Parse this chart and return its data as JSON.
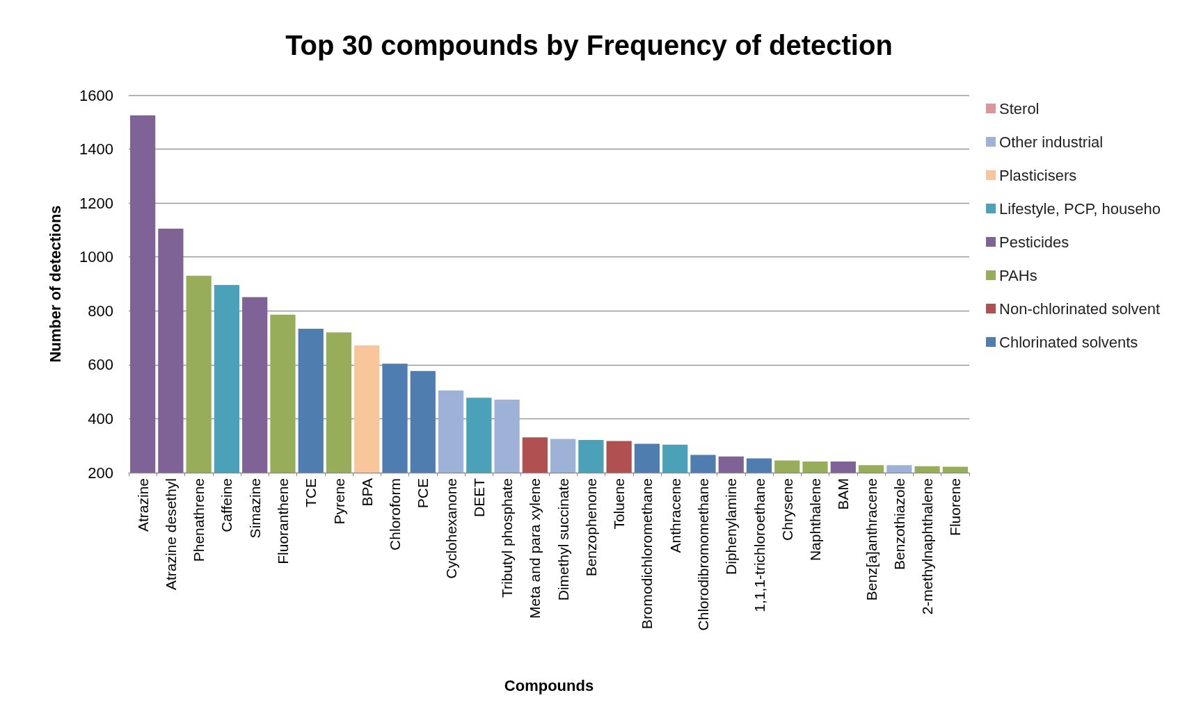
{
  "chart_data": {
    "type": "bar",
    "title": "Top 30 compounds by Frequency of detection",
    "xlabel": "Compounds",
    "ylabel": "Number of detections",
    "categories": [
      "Atrazine",
      "Atrazine desethyl",
      "Phenathrene",
      "Caffeine",
      "Simazine",
      "Fluoranthene",
      "TCE",
      "Pyrene",
      "BPA",
      "Chloroform",
      "PCE",
      "Cyclohexanone",
      "DEET",
      "Tributyl phosphate",
      "Meta and para xylene",
      "Dimethyl succinate",
      "Benzophenone",
      "Toluene",
      "Bromodichloromethane",
      "Anthracene",
      "Chlorodibromomethane",
      "Diphenylamine",
      "1,1,1-trichloroethane",
      "Chrysene",
      "Naphthalene",
      "BAM",
      "Benz[a]anthracene",
      "Benzothiazole",
      "2-methylnaphthalene",
      "Fluorene"
    ],
    "series": [
      {
        "name": "Sterol",
        "color": "#d99797",
        "values": [
          null,
          null,
          null,
          null,
          null,
          null,
          null,
          null,
          null,
          null,
          null,
          null,
          null,
          null,
          null,
          null,
          null,
          null,
          null,
          null,
          null,
          null,
          null,
          null,
          null,
          null,
          null,
          null,
          null,
          null
        ]
      },
      {
        "name": "Other industrial",
        "color": "#9db2d6",
        "values": [
          null,
          null,
          null,
          null,
          null,
          null,
          null,
          null,
          null,
          null,
          null,
          505,
          null,
          471,
          null,
          325,
          null,
          null,
          null,
          null,
          null,
          null,
          null,
          null,
          null,
          null,
          null,
          228,
          null,
          null
        ]
      },
      {
        "name": "Plasticisers",
        "color": "#f9c59b",
        "values": [
          null,
          null,
          null,
          null,
          null,
          null,
          null,
          null,
          672,
          null,
          null,
          null,
          null,
          null,
          null,
          null,
          null,
          null,
          null,
          null,
          null,
          null,
          null,
          null,
          null,
          null,
          null,
          null,
          null,
          null
        ]
      },
      {
        "name": "Lifestyle, PCP, househo",
        "color": "#4ba1b8",
        "values": [
          null,
          null,
          null,
          896,
          null,
          null,
          null,
          null,
          null,
          null,
          null,
          null,
          478,
          null,
          null,
          null,
          321,
          null,
          null,
          304,
          null,
          null,
          null,
          null,
          null,
          null,
          null,
          null,
          null,
          null
        ]
      },
      {
        "name": "Pesticides",
        "color": "#7f6397",
        "values": [
          1525,
          1105,
          null,
          null,
          851,
          null,
          null,
          null,
          null,
          null,
          null,
          null,
          null,
          null,
          null,
          null,
          null,
          null,
          null,
          null,
          null,
          260,
          null,
          null,
          null,
          241,
          null,
          null,
          null,
          null
        ]
      },
      {
        "name": "PAHs",
        "color": "#97ad5a",
        "values": [
          null,
          null,
          930,
          null,
          null,
          786,
          null,
          720,
          null,
          null,
          null,
          null,
          null,
          null,
          null,
          null,
          null,
          null,
          null,
          null,
          null,
          null,
          null,
          245,
          241,
          null,
          228,
          null,
          224,
          222
        ]
      },
      {
        "name": "Non-chlorinated solvent",
        "color": "#b05050",
        "values": [
          null,
          null,
          null,
          null,
          null,
          null,
          null,
          null,
          null,
          null,
          null,
          null,
          null,
          null,
          331,
          null,
          null,
          317,
          null,
          null,
          null,
          null,
          null,
          null,
          null,
          null,
          null,
          null,
          null,
          null
        ]
      },
      {
        "name": "Chlorinated solvents",
        "color": "#4f7db0",
        "values": [
          null,
          null,
          null,
          null,
          null,
          null,
          734,
          null,
          null,
          604,
          577,
          null,
          null,
          null,
          null,
          null,
          null,
          null,
          307,
          null,
          266,
          null,
          253,
          null,
          null,
          null,
          null,
          null,
          null,
          null
        ]
      }
    ],
    "stacked": true,
    "ylim": [
      200,
      1600
    ],
    "yticks": [
      200,
      400,
      600,
      800,
      1000,
      1200,
      1400,
      1600
    ],
    "grid": "y",
    "legend": "right"
  }
}
